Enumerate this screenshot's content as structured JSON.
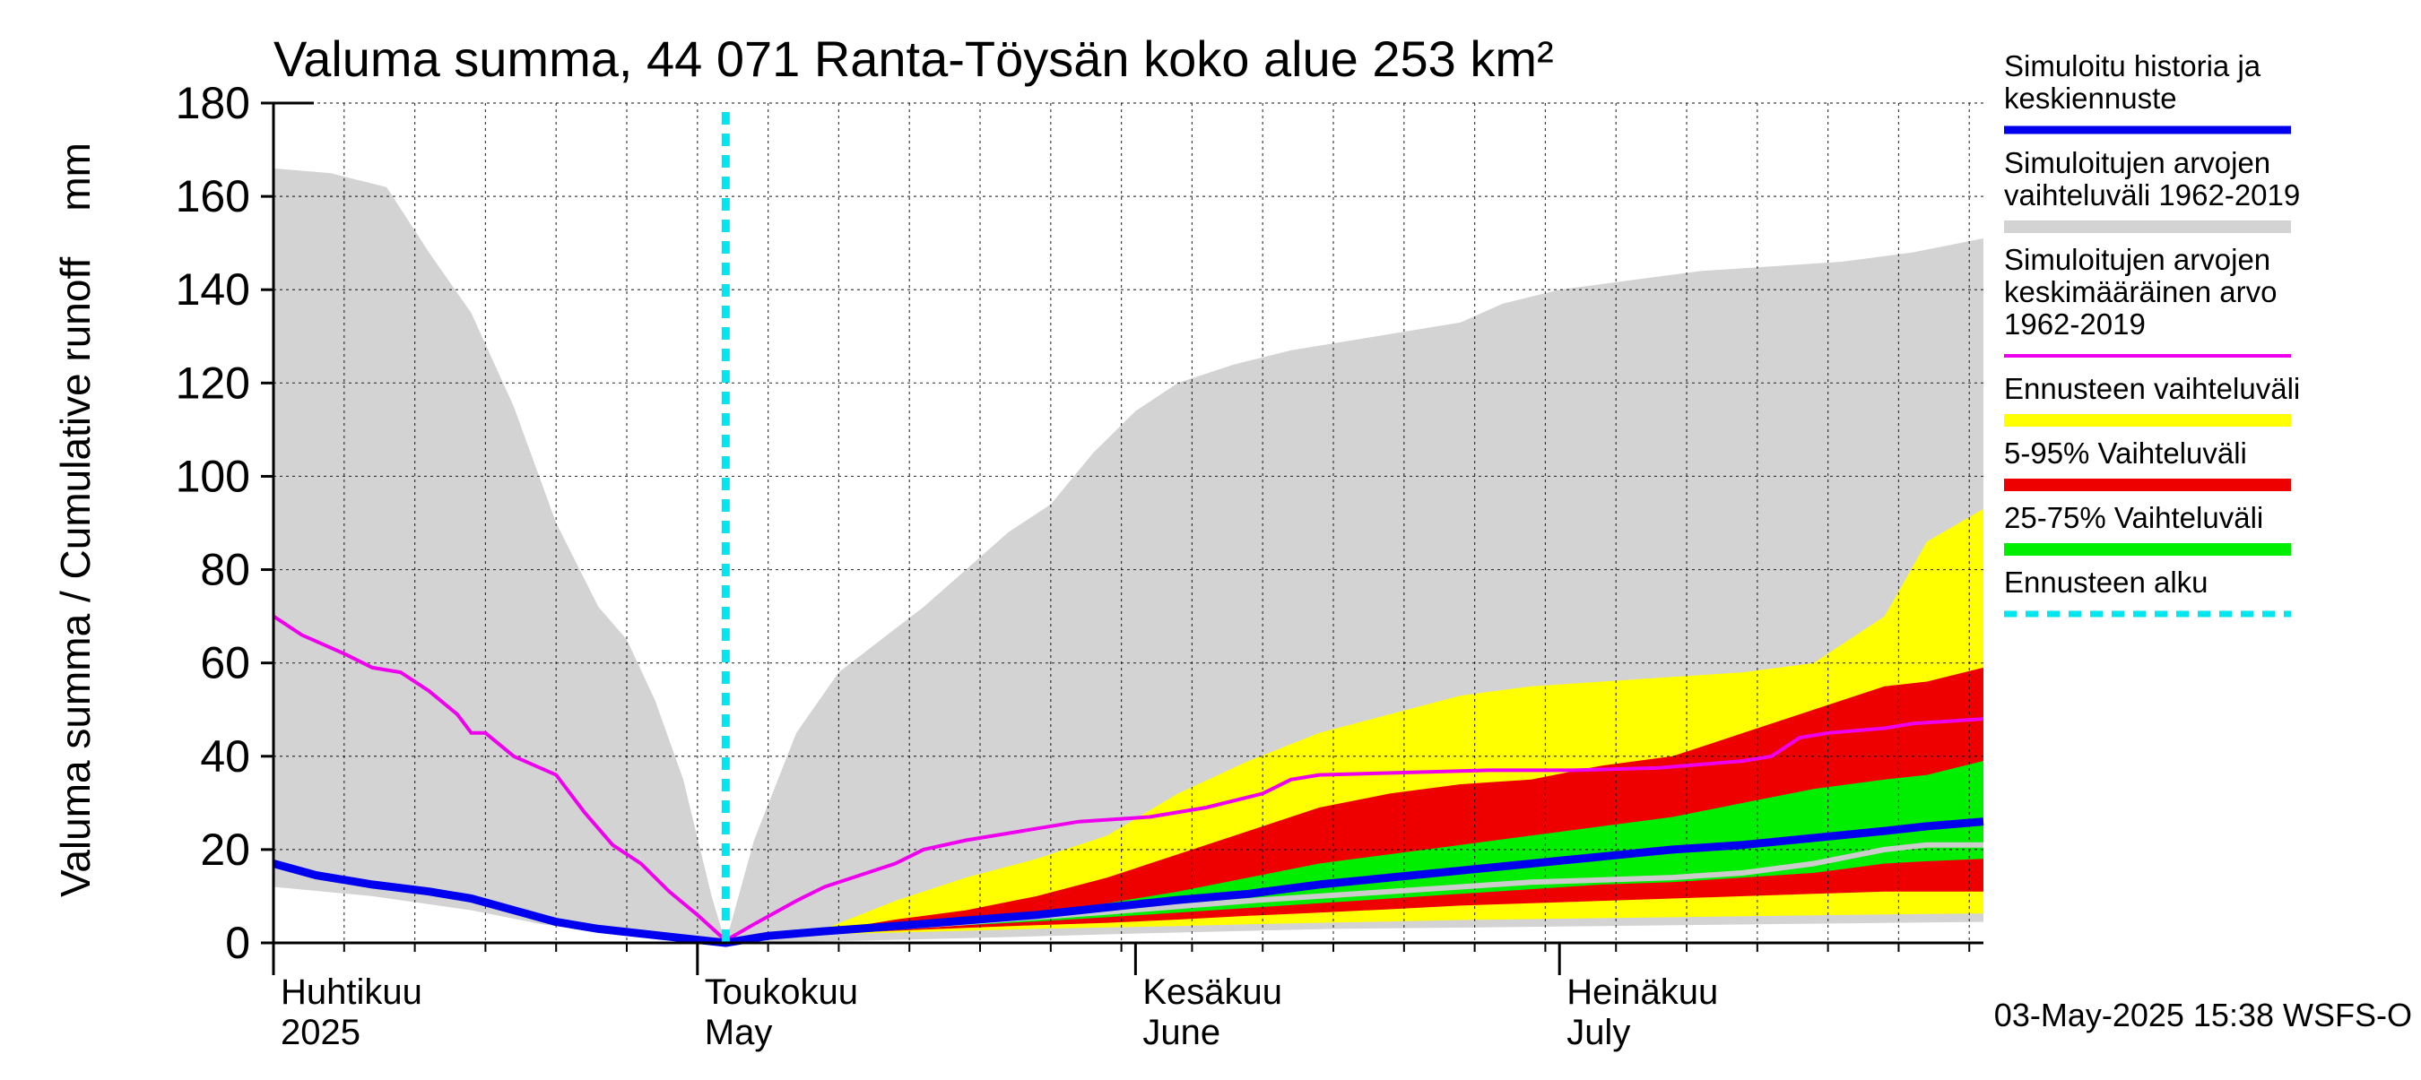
{
  "chart_data": {
    "type": "area",
    "title": "Valuma summa, 44 071 Ranta-Töysän koko alue 253 km²",
    "ylabel": "Valuma summa / Cumulative runoff    mm",
    "ylim": [
      0,
      180
    ],
    "yticks": [
      0,
      20,
      40,
      60,
      80,
      100,
      120,
      140,
      160,
      180
    ],
    "xlim": [
      "2025-04-01",
      "2025-07-31"
    ],
    "month_labels": [
      {
        "fi": "Huhtikuu",
        "en": "2025",
        "date": "2025-04-01"
      },
      {
        "fi": "Toukokuu",
        "en": "May",
        "date": "2025-05-01"
      },
      {
        "fi": "Kesäkuu",
        "en": "June",
        "date": "2025-06-01"
      },
      {
        "fi": "Heinäkuu",
        "en": "July",
        "date": "2025-07-01"
      }
    ],
    "grid": true,
    "forecast_start": "2025-05-03",
    "footer": "03-May-2025 15:38 WSFS-O",
    "colors": {
      "history": "#0000ee",
      "range": "#d3d3d3",
      "mean": "#ee00ee",
      "forecast_range": "#ffff00",
      "p5_95": "#ee0000",
      "p25_75": "#00ee00",
      "forecast_start": "#00e5ee",
      "median": "#cccccc"
    },
    "legend": [
      {
        "key": "history",
        "label": [
          "Simuloitu historia ja",
          "keskiennuste"
        ],
        "style": "line"
      },
      {
        "key": "range",
        "label": [
          "Simuloitujen arvojen",
          "vaihteluväli 1962-2019"
        ],
        "style": "band"
      },
      {
        "key": "mean",
        "label": [
          "Simuloitujen arvojen",
          "keskimääräinen arvo",
          "   1962-2019"
        ],
        "style": "thin"
      },
      {
        "key": "forecast_range",
        "label": [
          "Ennusteen vaihteluväli"
        ],
        "style": "band"
      },
      {
        "key": "p5_95",
        "label": [
          "5-95% Vaihteluväli"
        ],
        "style": "band"
      },
      {
        "key": "p25_75",
        "label": [
          "25-75% Vaihteluväli"
        ],
        "style": "band"
      },
      {
        "key": "forecast_start",
        "label": [
          "Ennusteen alku"
        ],
        "style": "dashed"
      }
    ],
    "series": {
      "range_upper": [
        [
          "2025-04-01",
          166
        ],
        [
          "2025-04-05",
          165
        ],
        [
          "2025-04-09",
          162
        ],
        [
          "2025-04-12",
          148
        ],
        [
          "2025-04-15",
          135
        ],
        [
          "2025-04-18",
          115
        ],
        [
          "2025-04-21",
          90
        ],
        [
          "2025-04-24",
          72
        ],
        [
          "2025-04-26",
          65
        ],
        [
          "2025-04-28",
          52
        ],
        [
          "2025-04-30",
          35
        ],
        [
          "2025-05-02",
          10
        ],
        [
          "2025-05-03",
          0
        ],
        [
          "2025-05-05",
          22
        ],
        [
          "2025-05-08",
          45
        ],
        [
          "2025-05-11",
          58
        ],
        [
          "2025-05-14",
          65
        ],
        [
          "2025-05-17",
          72
        ],
        [
          "2025-05-20",
          80
        ],
        [
          "2025-05-23",
          88
        ],
        [
          "2025-05-26",
          94
        ],
        [
          "2025-05-29",
          105
        ],
        [
          "2025-06-01",
          114
        ],
        [
          "2025-06-04",
          120
        ],
        [
          "2025-06-08",
          124
        ],
        [
          "2025-06-12",
          127
        ],
        [
          "2025-06-16",
          129
        ],
        [
          "2025-06-20",
          131
        ],
        [
          "2025-06-24",
          133
        ],
        [
          "2025-06-27",
          137
        ],
        [
          "2025-07-01",
          140
        ],
        [
          "2025-07-06",
          142
        ],
        [
          "2025-07-11",
          144
        ],
        [
          "2025-07-16",
          145
        ],
        [
          "2025-07-21",
          146
        ],
        [
          "2025-07-26",
          148
        ],
        [
          "2025-07-31",
          151
        ]
      ],
      "range_lower": [
        [
          "2025-04-01",
          12
        ],
        [
          "2025-04-08",
          10
        ],
        [
          "2025-04-15",
          7
        ],
        [
          "2025-04-20",
          4
        ],
        [
          "2025-04-25",
          2
        ],
        [
          "2025-05-03",
          0
        ],
        [
          "2025-05-10",
          0.3
        ],
        [
          "2025-05-20",
          1
        ],
        [
          "2025-06-01",
          2
        ],
        [
          "2025-06-15",
          3
        ],
        [
          "2025-07-01",
          3.5
        ],
        [
          "2025-07-15",
          4
        ],
        [
          "2025-07-31",
          4.5
        ]
      ],
      "mean": [
        [
          "2025-04-01",
          70
        ],
        [
          "2025-04-03",
          66
        ],
        [
          "2025-04-06",
          62
        ],
        [
          "2025-04-08",
          59
        ],
        [
          "2025-04-10",
          58
        ],
        [
          "2025-04-12",
          54
        ],
        [
          "2025-04-14",
          49
        ],
        [
          "2025-04-15",
          45
        ],
        [
          "2025-04-16",
          45
        ],
        [
          "2025-04-18",
          40
        ],
        [
          "2025-04-21",
          36
        ],
        [
          "2025-04-23",
          28
        ],
        [
          "2025-04-25",
          21
        ],
        [
          "2025-04-27",
          17
        ],
        [
          "2025-04-29",
          11
        ],
        [
          "2025-05-01",
          6
        ],
        [
          "2025-05-03",
          0.5
        ],
        [
          "2025-05-05",
          4
        ],
        [
          "2025-05-08",
          9
        ],
        [
          "2025-05-10",
          12
        ],
        [
          "2025-05-12",
          14
        ],
        [
          "2025-05-15",
          17
        ],
        [
          "2025-05-17",
          20
        ],
        [
          "2025-05-20",
          22
        ],
        [
          "2025-05-24",
          24
        ],
        [
          "2025-05-28",
          26
        ],
        [
          "2025-06-02",
          27
        ],
        [
          "2025-06-06",
          29
        ],
        [
          "2025-06-10",
          32
        ],
        [
          "2025-06-12",
          35
        ],
        [
          "2025-06-14",
          36
        ],
        [
          "2025-06-20",
          36.5
        ],
        [
          "2025-06-26",
          37
        ],
        [
          "2025-07-02",
          37
        ],
        [
          "2025-07-08",
          37.5
        ],
        [
          "2025-07-14",
          39
        ],
        [
          "2025-07-16",
          40
        ],
        [
          "2025-07-18",
          44
        ],
        [
          "2025-07-20",
          45
        ],
        [
          "2025-07-24",
          46
        ],
        [
          "2025-07-26",
          47
        ],
        [
          "2025-07-31",
          48
        ]
      ],
      "history": [
        [
          "2025-04-01",
          17
        ],
        [
          "2025-04-04",
          14.5
        ],
        [
          "2025-04-08",
          12.5
        ],
        [
          "2025-04-12",
          11
        ],
        [
          "2025-04-15",
          9.5
        ],
        [
          "2025-04-18",
          7
        ],
        [
          "2025-04-21",
          4.5
        ],
        [
          "2025-04-24",
          3
        ],
        [
          "2025-04-27",
          2
        ],
        [
          "2025-04-30",
          1
        ],
        [
          "2025-05-03",
          0
        ],
        [
          "2025-05-06",
          1.5
        ],
        [
          "2025-05-10",
          2.5
        ]
      ],
      "forecast": {
        "dates": [
          "2025-05-10",
          "2025-05-15",
          "2025-05-20",
          "2025-05-25",
          "2025-05-30",
          "2025-06-04",
          "2025-06-09",
          "2025-06-14",
          "2025-06-19",
          "2025-06-24",
          "2025-06-29",
          "2025-07-04",
          "2025-07-09",
          "2025-07-14",
          "2025-07-19",
          "2025-07-24",
          "2025-07-27",
          "2025-07-31"
        ],
        "yellow_upper": [
          3,
          9,
          14,
          18,
          23,
          32,
          39,
          45,
          49,
          53,
          55,
          56,
          57,
          58,
          60,
          70,
          86,
          93
        ],
        "red_upper": [
          2.5,
          5,
          7,
          10,
          14,
          19,
          24,
          29,
          32,
          34,
          35,
          38,
          40,
          45,
          50,
          55,
          56,
          59
        ],
        "green_upper": [
          2.3,
          3.8,
          5,
          6.5,
          8.5,
          11,
          14,
          17,
          19,
          21,
          23,
          25,
          27,
          30,
          33,
          35,
          36,
          39
        ],
        "median": [
          2.2,
          3.3,
          4.4,
          5.5,
          6.6,
          7.8,
          9,
          10,
          11,
          12,
          13,
          13.5,
          14,
          15,
          17,
          20,
          21,
          21
        ],
        "center": [
          2.2,
          3.6,
          4.8,
          6,
          7.6,
          9.2,
          10.5,
          12.5,
          14,
          15.5,
          17,
          18.5,
          20,
          21,
          22.5,
          24,
          25,
          26
        ],
        "green_lower": [
          2,
          3,
          3.8,
          4.6,
          5.5,
          6.5,
          7.5,
          8.5,
          9.5,
          10.5,
          11.5,
          12.5,
          13,
          14,
          15,
          17,
          17.5,
          18
        ],
        "red_lower": [
          1.9,
          2.6,
          3.2,
          3.8,
          4.3,
          5,
          5.8,
          6.5,
          7.2,
          8,
          8.5,
          9,
          9.5,
          10,
          10.5,
          11,
          11,
          11
        ],
        "yellow_lower": [
          1.8,
          2.2,
          2.6,
          3,
          3.3,
          3.6,
          4,
          4.3,
          4.6,
          4.9,
          5.1,
          5.3,
          5.5,
          5.7,
          5.9,
          6.1,
          6.2,
          6.3
        ]
      }
    }
  }
}
